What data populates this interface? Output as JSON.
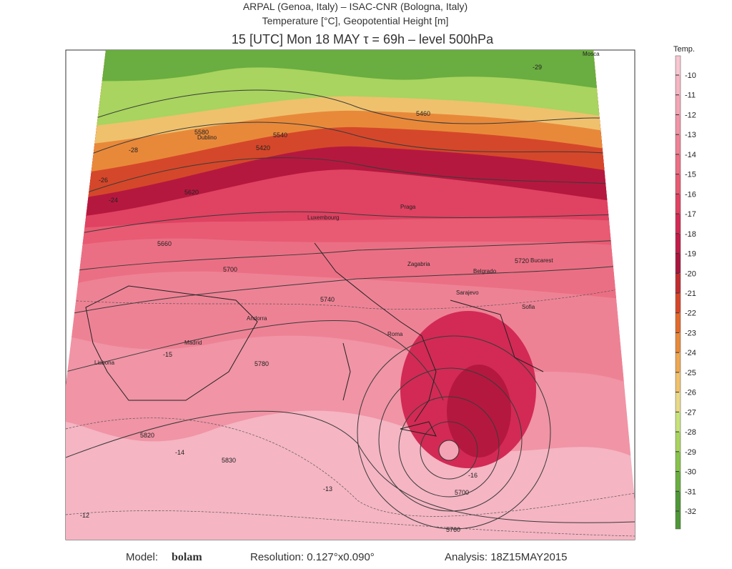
{
  "header": {
    "line1": "ARPAL (Genoa, Italy)  –  ISAC-CNR (Bologna, Italy)",
    "line2": "Temperature [°C], Geopotential Height [m]",
    "title": "15 [UTC] Mon 18 MAY   τ = 69h   –   level 500hPa"
  },
  "colorbar": {
    "title": "Temp.",
    "ticks": [
      -10,
      -11,
      -12,
      -13,
      -14,
      -15,
      -16,
      -17,
      -18,
      -19,
      -20,
      -21,
      -22,
      -23,
      -24,
      -25,
      -26,
      -27,
      -28,
      -29,
      -30,
      -31,
      -32
    ],
    "colors": [
      "#f7c6d0",
      "#f5b5c3",
      "#f3a4b5",
      "#f094a6",
      "#ee8295",
      "#eb6f84",
      "#e85b73",
      "#e04262",
      "#d22a55",
      "#c01c4a",
      "#a8163e",
      "#c02c30",
      "#d5472a",
      "#e06a2c",
      "#e8893a",
      "#eda652",
      "#efc16d",
      "#e9d888",
      "#c8e27c",
      "#a8d45f",
      "#88c24b",
      "#6aad40",
      "#4f9638"
    ]
  },
  "map": {
    "cities": [
      "Madrid",
      "Lisbona",
      "Andorra",
      "Roma",
      "Praga",
      "Zagabria",
      "Belgrado",
      "Sarajevo",
      "Sofia",
      "Bucarest",
      "Mosca",
      "Luxembourg",
      "Dublino"
    ],
    "labels": [
      "5700",
      "5740",
      "5780",
      "5820",
      "5830",
      "5660",
      "5620",
      "5580",
      "5540",
      "5420",
      "5460",
      "5720",
      "5700",
      "5760",
      "-12",
      "-13",
      "-14",
      "-15",
      "-16",
      "-24",
      "-26",
      "-28",
      "-29"
    ]
  },
  "footer": {
    "model_label": "Model:",
    "model": "bolam",
    "resolution": "Resolution: 0.127°x0.090°",
    "analysis": "Analysis: 18Z15MAY2015"
  }
}
